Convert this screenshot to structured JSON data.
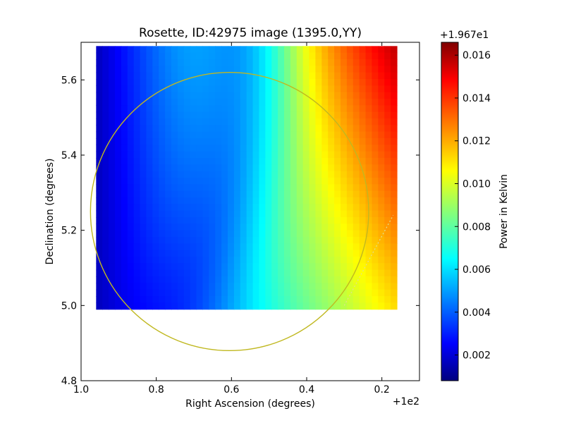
{
  "chart_data": {
    "type": "heatmap",
    "title": "Rosette, ID:42975 image (1395.0,YY)",
    "xlabel": "Right Ascension (degrees)",
    "ylabel": "Declination (degrees)",
    "x_offset_label": "+1e2",
    "xlim": [
      1.0,
      0.1
    ],
    "ylim": [
      4.8,
      5.7
    ],
    "x_ticks": [
      "1.0",
      "0.8",
      "0.6",
      "0.4",
      "0.2"
    ],
    "y_ticks": [
      "4.8",
      "5.0",
      "5.2",
      "5.4",
      "5.6"
    ],
    "image_extent": {
      "x": [
        0.96,
        0.16
      ],
      "y": [
        4.99,
        5.69
      ]
    },
    "colormap": "jet",
    "colorbar": {
      "label": "Power in Kelvin",
      "offset_label": "+1.967e1",
      "range": [
        0.0008,
        0.0166
      ],
      "ticks": [
        "0.002",
        "0.004",
        "0.006",
        "0.008",
        "0.010",
        "0.012",
        "0.014",
        "0.016"
      ]
    },
    "circle": {
      "center": [
        0.605,
        5.25
      ],
      "radius": 0.37,
      "color": "#c0b820"
    },
    "dotted_line": {
      "from": [
        0.3,
        5.0
      ],
      "to": [
        0.17,
        5.24
      ],
      "color": "#e0e090"
    }
  }
}
